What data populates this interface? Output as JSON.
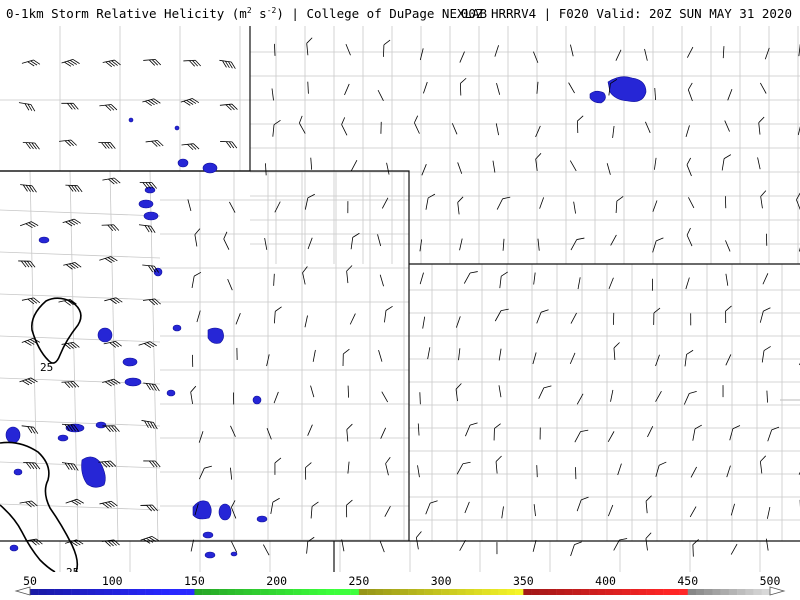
{
  "header": {
    "title_main": "0-1km Storm Relative Helicity (m",
    "title_exp1": "2",
    "title_mid": " s",
    "title_exp2": "-2",
    "title_end": ") | College of DuPage NEXLAB",
    "right": "00Z HRRRV4 | F020 Valid: 20Z SUN MAY 31 2020"
  },
  "colorbar": {
    "labels": [
      "50",
      "100",
      "150",
      "200",
      "250",
      "300",
      "350",
      "400",
      "450",
      "500"
    ],
    "colors": {
      "blue": "#2222dd",
      "green": "#33dd33",
      "olive": "#c8c820",
      "red": "#d82020",
      "gray": "#b4b4b4"
    }
  },
  "contours": [
    {
      "label": "25"
    },
    {
      "label": "25"
    }
  ]
}
